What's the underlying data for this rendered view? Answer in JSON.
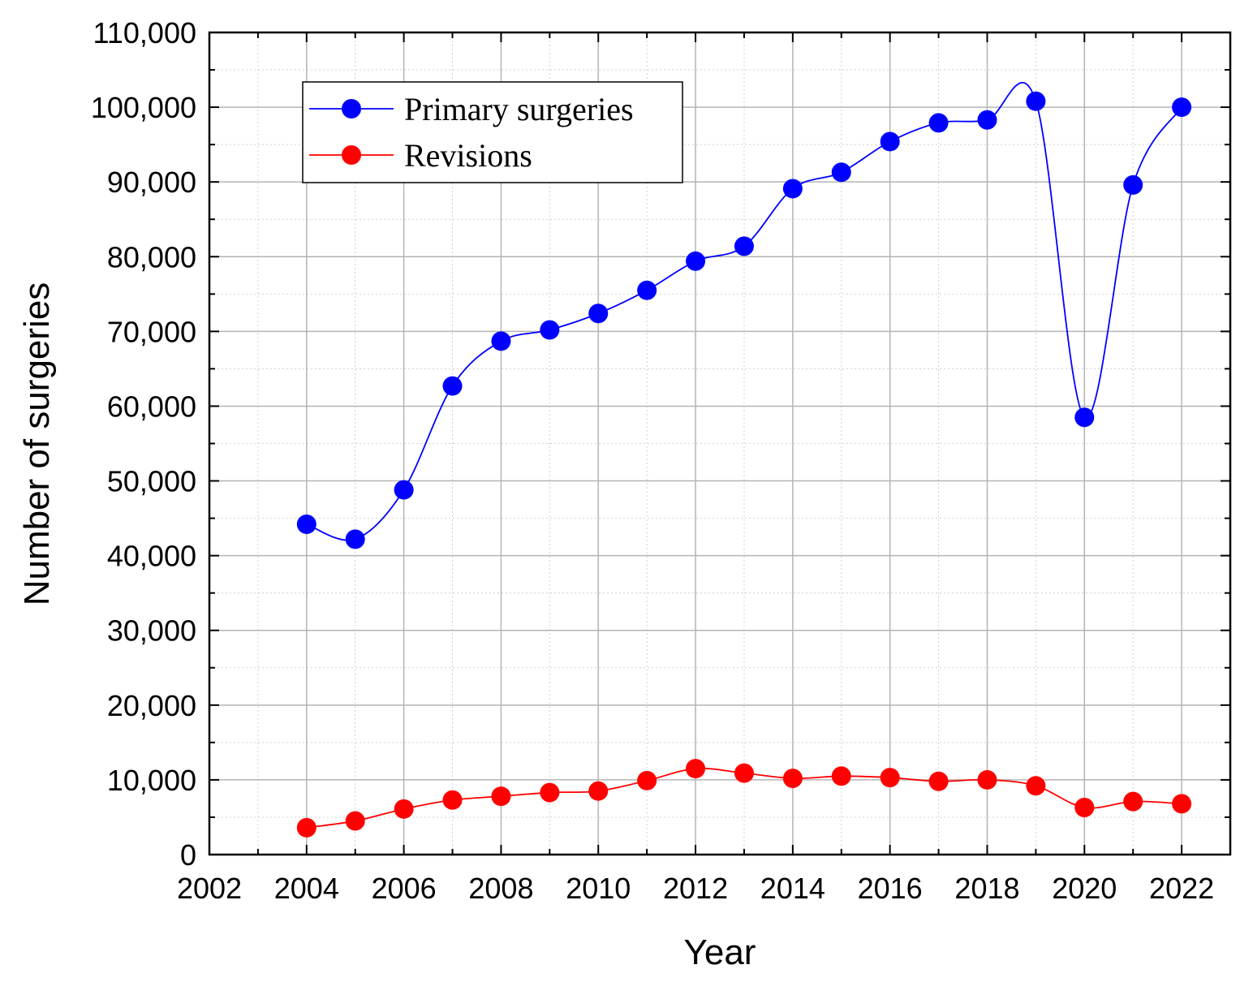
{
  "chart_data": {
    "type": "line",
    "title": "",
    "xlabel": "Year",
    "ylabel": "Number of surgeries",
    "xlim": [
      2002,
      2023
    ],
    "ylim": [
      0,
      110000
    ],
    "x_ticks": [
      "2002",
      "2004",
      "2006",
      "2008",
      "2010",
      "2012",
      "2014",
      "2016",
      "2018",
      "2020",
      "2022"
    ],
    "y_ticks": [
      "0",
      "10,000",
      "20,000",
      "30,000",
      "40,000",
      "50,000",
      "60,000",
      "70,000",
      "80,000",
      "90,000",
      "100,000",
      "110,000"
    ],
    "grid": true,
    "legend_position": "top-left",
    "x": [
      2004,
      2005,
      2006,
      2007,
      2008,
      2009,
      2010,
      2011,
      2012,
      2013,
      2014,
      2015,
      2016,
      2017,
      2018,
      2019,
      2020,
      2021,
      2022
    ],
    "series": [
      {
        "name": "Primary surgeries",
        "color": "#0000ff",
        "values": [
          44200,
          42200,
          48800,
          62700,
          68700,
          70200,
          72400,
          75500,
          79400,
          81400,
          89100,
          91300,
          95400,
          97900,
          98300,
          100800,
          58500,
          89600,
          100000
        ]
      },
      {
        "name": "Revisions",
        "color": "#ff0000",
        "values": [
          3600,
          4500,
          6100,
          7300,
          7800,
          8300,
          8500,
          9900,
          11500,
          10900,
          10200,
          10500,
          10300,
          9800,
          10000,
          9200,
          6300,
          7100,
          6800
        ]
      }
    ]
  }
}
